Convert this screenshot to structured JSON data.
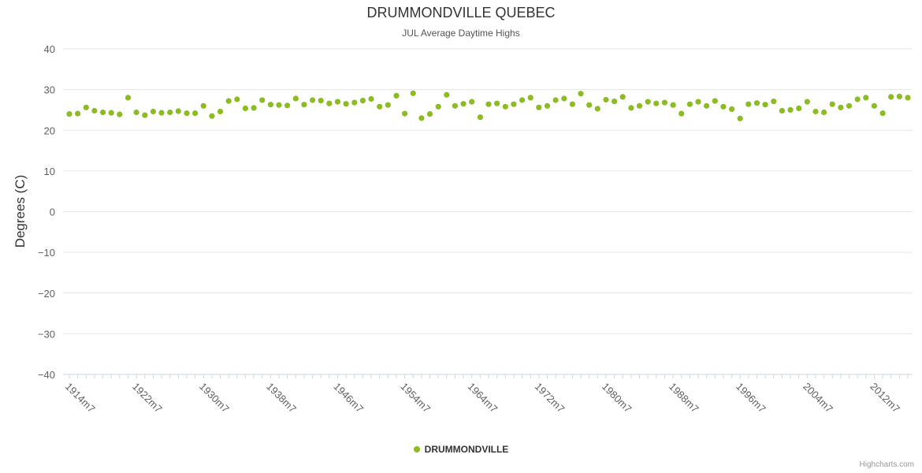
{
  "chart": {
    "point_color": "#8bbc21",
    "grid_color": "#e6e6e6",
    "axis_line_color": "#ccd6eb",
    "axis_label_color": "#606060",
    "credits_label": "Highcharts.com"
  },
  "chart_data": {
    "type": "scatter",
    "title": "DRUMMONDVILLE QUEBEC",
    "subtitle": "JUL Average Daytime Highs",
    "xlabel": "",
    "ylabel": "Degrees (C)",
    "ylim": [
      -40,
      40
    ],
    "yticks": [
      -40,
      -30,
      -20,
      -10,
      0,
      10,
      20,
      30,
      40
    ],
    "grid": true,
    "legend": [
      "DRUMMONDVILLE"
    ],
    "legend_position": "bottom",
    "x_label_step": 8,
    "x_tick_labels": [
      "1914m7",
      "1922m7",
      "1930m7",
      "1938m7",
      "1946m7",
      "1954m7",
      "1964m7",
      "1972m7",
      "1980m7",
      "1988m7",
      "1996m7",
      "2004m7",
      "2012m7"
    ],
    "categories": [
      "1914m7",
      "1915m7",
      "1916m7",
      "1917m7",
      "1918m7",
      "1919m7",
      "1920m7",
      "1921m7",
      "1922m7",
      "1923m7",
      "1924m7",
      "1925m7",
      "1926m7",
      "1927m7",
      "1928m7",
      "1929m7",
      "1930m7",
      "1931m7",
      "1932m7",
      "1933m7",
      "1934m7",
      "1935m7",
      "1936m7",
      "1937m7",
      "1938m7",
      "1939m7",
      "1940m7",
      "1941m7",
      "1942m7",
      "1943m7",
      "1944m7",
      "1945m7",
      "1946m7",
      "1947m7",
      "1948m7",
      "1949m7",
      "1950m7",
      "1951m7",
      "1952m7",
      "1953m7",
      "1954m7",
      "1957m7",
      "1958m7",
      "1959m7",
      "1960m7",
      "1961m7",
      "1962m7",
      "1963m7",
      "1964m7",
      "1965m7",
      "1966m7",
      "1967m7",
      "1968m7",
      "1969m7",
      "1970m7",
      "1971m7",
      "1972m7",
      "1973m7",
      "1974m7",
      "1975m7",
      "1976m7",
      "1977m7",
      "1978m7",
      "1979m7",
      "1980m7",
      "1981m7",
      "1982m7",
      "1983m7",
      "1984m7",
      "1985m7",
      "1986m7",
      "1987m7",
      "1988m7",
      "1989m7",
      "1990m7",
      "1991m7",
      "1992m7",
      "1993m7",
      "1994m7",
      "1995m7",
      "1996m7",
      "1997m7",
      "1998m7",
      "1999m7",
      "2000m7",
      "2001m7",
      "2002m7",
      "2003m7",
      "2004m7",
      "2005m7",
      "2006m7",
      "2007m7",
      "2008m7",
      "2009m7",
      "2010m7",
      "2011m7",
      "2012m7",
      "2013m7",
      "2014m7",
      "2015m7",
      "2016m7"
    ],
    "values": [
      24.0,
      24.1,
      25.6,
      24.8,
      24.4,
      24.3,
      23.9,
      28.0,
      24.4,
      23.7,
      24.6,
      24.3,
      24.4,
      24.7,
      24.2,
      24.2,
      26.0,
      23.5,
      24.6,
      27.2,
      27.6,
      25.4,
      25.5,
      27.4,
      26.3,
      26.2,
      26.1,
      27.8,
      26.3,
      27.4,
      27.3,
      26.6,
      27.0,
      26.5,
      26.8,
      27.3,
      27.7,
      25.8,
      26.2,
      28.5,
      24.1,
      29.1,
      23.0,
      24.0,
      25.8,
      28.7,
      26.0,
      26.5,
      27.0,
      23.2,
      26.4,
      26.6,
      25.8,
      26.4,
      27.4,
      28.0,
      25.6,
      26.0,
      27.4,
      27.8,
      26.4,
      29.0,
      26.2,
      25.3,
      27.5,
      27.1,
      28.2,
      25.5,
      26.0,
      27.0,
      26.6,
      26.8,
      26.2,
      24.1,
      26.4,
      27.0,
      26.0,
      27.2,
      25.8,
      25.2,
      22.9,
      26.4,
      26.7,
      26.3,
      27.1,
      24.8,
      25.0,
      25.4,
      27.0,
      24.6,
      24.4,
      26.4,
      25.6,
      26.0,
      27.6,
      28.0,
      26.0,
      24.2,
      28.2,
      28.3,
      28.0
    ]
  }
}
